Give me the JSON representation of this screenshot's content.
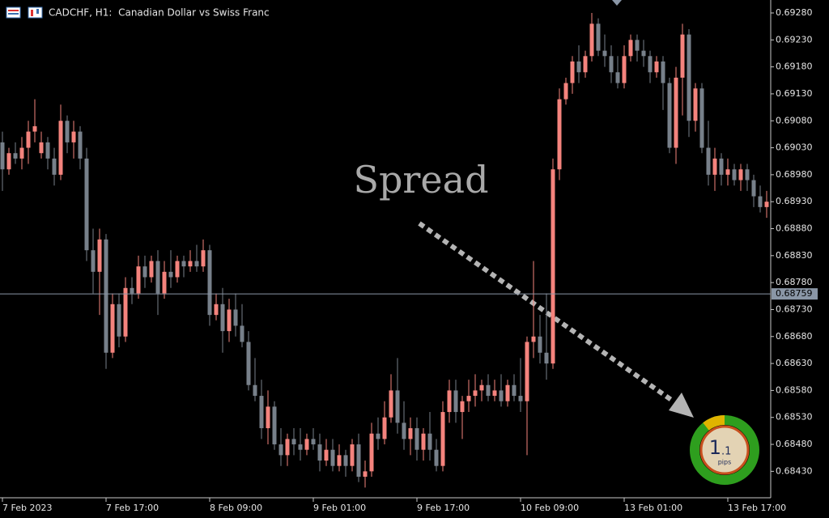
{
  "chart_data": {
    "type": "candlestick",
    "title": "CADCHF, H1:  Canadian Dollar vs Swiss Franc",
    "annotation": "Spread",
    "up_color": "#f4837d",
    "down_color": "#77808a",
    "ylim": [
      0.68381,
      0.69304
    ],
    "yticks": [
      {
        "value": 0.6843,
        "label": "0.68430"
      },
      {
        "value": 0.6848,
        "label": "0.68480"
      },
      {
        "value": 0.6853,
        "label": "0.68530"
      },
      {
        "value": 0.6858,
        "label": "0.68580"
      },
      {
        "value": 0.6863,
        "label": "0.68630"
      },
      {
        "value": 0.6868,
        "label": "0.68680"
      },
      {
        "value": 0.6873,
        "label": "0.68730"
      },
      {
        "value": 0.6878,
        "label": "0.68780"
      },
      {
        "value": 0.6883,
        "label": "0.68830"
      },
      {
        "value": 0.6888,
        "label": "0.68880"
      },
      {
        "value": 0.6893,
        "label": "0.68930"
      },
      {
        "value": 0.6898,
        "label": "0.68980"
      },
      {
        "value": 0.6903,
        "label": "0.69030"
      },
      {
        "value": 0.6908,
        "label": "0.69080"
      },
      {
        "value": 0.6913,
        "label": "0.69130"
      },
      {
        "value": 0.6918,
        "label": "0.69180"
      },
      {
        "value": 0.6923,
        "label": "0.69230"
      },
      {
        "value": 0.6928,
        "label": "0.69280"
      }
    ],
    "current_price": 0.68759,
    "categories": [
      "7 Feb 2023",
      null,
      null,
      null,
      null,
      null,
      null,
      null,
      null,
      null,
      null,
      null,
      null,
      null,
      null,
      null,
      "7 Feb 17:00",
      null,
      null,
      null,
      null,
      null,
      null,
      null,
      null,
      null,
      null,
      null,
      null,
      null,
      null,
      null,
      "8 Feb 09:00",
      null,
      null,
      null,
      null,
      null,
      null,
      null,
      null,
      null,
      null,
      null,
      null,
      null,
      null,
      null,
      "9 Feb 01:00",
      null,
      null,
      null,
      null,
      null,
      null,
      null,
      null,
      null,
      null,
      null,
      null,
      null,
      null,
      null,
      "9 Feb 17:00",
      null,
      null,
      null,
      null,
      null,
      null,
      null,
      null,
      null,
      null,
      null,
      null,
      null,
      null,
      null,
      "10 Feb 09:00",
      null,
      null,
      null,
      null,
      null,
      null,
      null,
      null,
      null,
      null,
      null,
      null,
      null,
      null,
      null,
      "13 Feb 01:00",
      null,
      null,
      null,
      null,
      null,
      null,
      null,
      null,
      null,
      null,
      null,
      null,
      null,
      null,
      null,
      "13 Feb 17:00",
      null,
      null,
      null,
      null,
      null,
      null
    ],
    "ohlc": [
      [
        0.6904,
        0.6906,
        0.6895,
        0.6899
      ],
      [
        0.6899,
        0.6903,
        0.6898,
        0.6902
      ],
      [
        0.6902,
        0.6904,
        0.69,
        0.6901
      ],
      [
        0.6901,
        0.6905,
        0.6899,
        0.6903
      ],
      [
        0.6903,
        0.6908,
        0.69,
        0.6906
      ],
      [
        0.6906,
        0.6912,
        0.6904,
        0.6907
      ],
      [
        0.6902,
        0.6906,
        0.6901,
        0.6904
      ],
      [
        0.6904,
        0.6905,
        0.6899,
        0.6901
      ],
      [
        0.6901,
        0.6903,
        0.6896,
        0.6898
      ],
      [
        0.6898,
        0.6911,
        0.6897,
        0.6908
      ],
      [
        0.6908,
        0.6909,
        0.6902,
        0.6904
      ],
      [
        0.6904,
        0.6908,
        0.6901,
        0.6906
      ],
      [
        0.6906,
        0.6907,
        0.6899,
        0.6901
      ],
      [
        0.6901,
        0.6903,
        0.6882,
        0.6884
      ],
      [
        0.6884,
        0.6888,
        0.6876,
        0.688
      ],
      [
        0.688,
        0.6888,
        0.6872,
        0.6886
      ],
      [
        0.6886,
        0.6887,
        0.6862,
        0.6865
      ],
      [
        0.6865,
        0.6876,
        0.6864,
        0.6874
      ],
      [
        0.6874,
        0.6876,
        0.6866,
        0.6868
      ],
      [
        0.6868,
        0.6879,
        0.6867,
        0.6877
      ],
      [
        0.6877,
        0.6879,
        0.6874,
        0.6876
      ],
      [
        0.6876,
        0.6883,
        0.6875,
        0.6881
      ],
      [
        0.6881,
        0.6883,
        0.6877,
        0.6879
      ],
      [
        0.6879,
        0.6883,
        0.6878,
        0.6882
      ],
      [
        0.6882,
        0.6884,
        0.6872,
        0.6876
      ],
      [
        0.6876,
        0.6882,
        0.6875,
        0.688
      ],
      [
        0.688,
        0.6884,
        0.6877,
        0.6879
      ],
      [
        0.6879,
        0.6883,
        0.6878,
        0.6882
      ],
      [
        0.6882,
        0.6883,
        0.6879,
        0.6881
      ],
      [
        0.6881,
        0.6884,
        0.688,
        0.6882
      ],
      [
        0.6882,
        0.6885,
        0.688,
        0.6881
      ],
      [
        0.6881,
        0.6886,
        0.688,
        0.6884
      ],
      [
        0.6884,
        0.6885,
        0.687,
        0.6872
      ],
      [
        0.6872,
        0.6876,
        0.6871,
        0.6874
      ],
      [
        0.6874,
        0.6877,
        0.6865,
        0.6869
      ],
      [
        0.6869,
        0.6875,
        0.6867,
        0.6873
      ],
      [
        0.6873,
        0.6876,
        0.6868,
        0.687
      ],
      [
        0.687,
        0.6874,
        0.6866,
        0.6867
      ],
      [
        0.6867,
        0.6869,
        0.6858,
        0.6859
      ],
      [
        0.6859,
        0.6864,
        0.6856,
        0.6857
      ],
      [
        0.6857,
        0.686,
        0.6849,
        0.6851
      ],
      [
        0.6851,
        0.6858,
        0.6848,
        0.6855
      ],
      [
        0.6855,
        0.6856,
        0.6847,
        0.6848
      ],
      [
        0.6848,
        0.6851,
        0.6844,
        0.6846
      ],
      [
        0.6846,
        0.685,
        0.6844,
        0.6849
      ],
      [
        0.6849,
        0.6851,
        0.6846,
        0.6848
      ],
      [
        0.6848,
        0.6851,
        0.6845,
        0.6847
      ],
      [
        0.6847,
        0.685,
        0.6846,
        0.6849
      ],
      [
        0.6849,
        0.6851,
        0.6847,
        0.6848
      ],
      [
        0.6848,
        0.685,
        0.6843,
        0.6845
      ],
      [
        0.6845,
        0.6849,
        0.6844,
        0.6847
      ],
      [
        0.6847,
        0.6849,
        0.6843,
        0.6844
      ],
      [
        0.6844,
        0.6848,
        0.6843,
        0.6846
      ],
      [
        0.6846,
        0.6847,
        0.6842,
        0.6844
      ],
      [
        0.6844,
        0.6849,
        0.6843,
        0.6848
      ],
      [
        0.6848,
        0.685,
        0.6841,
        0.6842
      ],
      [
        0.6842,
        0.6845,
        0.684,
        0.6843
      ],
      [
        0.6843,
        0.6852,
        0.6842,
        0.685
      ],
      [
        0.685,
        0.6853,
        0.6847,
        0.6849
      ],
      [
        0.6849,
        0.6856,
        0.6848,
        0.6853
      ],
      [
        0.6853,
        0.6861,
        0.6852,
        0.6858
      ],
      [
        0.6858,
        0.6864,
        0.685,
        0.6852
      ],
      [
        0.6852,
        0.6856,
        0.6847,
        0.6849
      ],
      [
        0.6849,
        0.6853,
        0.6846,
        0.6851
      ],
      [
        0.6851,
        0.6853,
        0.6845,
        0.6847
      ],
      [
        0.6847,
        0.6851,
        0.6845,
        0.685
      ],
      [
        0.685,
        0.6854,
        0.6845,
        0.6847
      ],
      [
        0.6847,
        0.6849,
        0.6843,
        0.6844
      ],
      [
        0.6844,
        0.6856,
        0.6843,
        0.6854
      ],
      [
        0.6854,
        0.686,
        0.6852,
        0.6858
      ],
      [
        0.6858,
        0.686,
        0.6852,
        0.6854
      ],
      [
        0.6854,
        0.6857,
        0.6849,
        0.6856
      ],
      [
        0.6856,
        0.686,
        0.6854,
        0.6857
      ],
      [
        0.6857,
        0.6861,
        0.6855,
        0.6858
      ],
      [
        0.6858,
        0.686,
        0.6856,
        0.6859
      ],
      [
        0.6859,
        0.6861,
        0.6856,
        0.6857
      ],
      [
        0.6857,
        0.686,
        0.6856,
        0.6858
      ],
      [
        0.6858,
        0.6861,
        0.6855,
        0.6856
      ],
      [
        0.6856,
        0.686,
        0.6855,
        0.6859
      ],
      [
        0.6859,
        0.6861,
        0.6856,
        0.6857
      ],
      [
        0.6857,
        0.6864,
        0.6854,
        0.6856
      ],
      [
        0.6856,
        0.6868,
        0.6846,
        0.6867
      ],
      [
        0.6867,
        0.6882,
        0.6864,
        0.6868
      ],
      [
        0.6868,
        0.6872,
        0.6863,
        0.6865
      ],
      [
        0.6865,
        0.6876,
        0.686,
        0.6863
      ],
      [
        0.6863,
        0.6901,
        0.6862,
        0.6899
      ],
      [
        0.6899,
        0.6914,
        0.6897,
        0.6912
      ],
      [
        0.6912,
        0.6916,
        0.6911,
        0.6915
      ],
      [
        0.6915,
        0.692,
        0.6913,
        0.6919
      ],
      [
        0.6919,
        0.6922,
        0.6915,
        0.6917
      ],
      [
        0.6917,
        0.6921,
        0.6916,
        0.692
      ],
      [
        0.692,
        0.6928,
        0.6919,
        0.6926
      ],
      [
        0.6926,
        0.6927,
        0.692,
        0.6921
      ],
      [
        0.6921,
        0.6924,
        0.6918,
        0.692
      ],
      [
        0.692,
        0.6922,
        0.6915,
        0.6917
      ],
      [
        0.6917,
        0.692,
        0.6914,
        0.6915
      ],
      [
        0.6915,
        0.6922,
        0.6914,
        0.692
      ],
      [
        0.692,
        0.6924,
        0.6919,
        0.6923
      ],
      [
        0.6923,
        0.6924,
        0.6919,
        0.6921
      ],
      [
        0.6921,
        0.6923,
        0.6918,
        0.692
      ],
      [
        0.692,
        0.6921,
        0.6915,
        0.6917
      ],
      [
        0.6917,
        0.692,
        0.6916,
        0.6919
      ],
      [
        0.6919,
        0.692,
        0.691,
        0.6915
      ],
      [
        0.6915,
        0.6916,
        0.6902,
        0.6903
      ],
      [
        0.6903,
        0.6918,
        0.69,
        0.6916
      ],
      [
        0.6916,
        0.6926,
        0.6909,
        0.6924
      ],
      [
        0.6924,
        0.6925,
        0.6905,
        0.6908
      ],
      [
        0.6908,
        0.6915,
        0.6906,
        0.6914
      ],
      [
        0.6914,
        0.6915,
        0.6902,
        0.6903
      ],
      [
        0.6903,
        0.6908,
        0.6896,
        0.6898
      ],
      [
        0.6898,
        0.6903,
        0.6895,
        0.6901
      ],
      [
        0.6901,
        0.6902,
        0.6896,
        0.6898
      ],
      [
        0.6898,
        0.6901,
        0.6896,
        0.6899
      ],
      [
        0.6899,
        0.69,
        0.6896,
        0.6897
      ],
      [
        0.6897,
        0.69,
        0.6895,
        0.6899
      ],
      [
        0.6899,
        0.69,
        0.6895,
        0.6897
      ],
      [
        0.6897,
        0.6898,
        0.6892,
        0.6894
      ],
      [
        0.6894,
        0.6896,
        0.6891,
        0.6892
      ],
      [
        0.6892,
        0.6895,
        0.689,
        0.6893
      ]
    ]
  },
  "spread_widget": {
    "integer": "1",
    "fraction": ".1",
    "unit": "pips"
  }
}
